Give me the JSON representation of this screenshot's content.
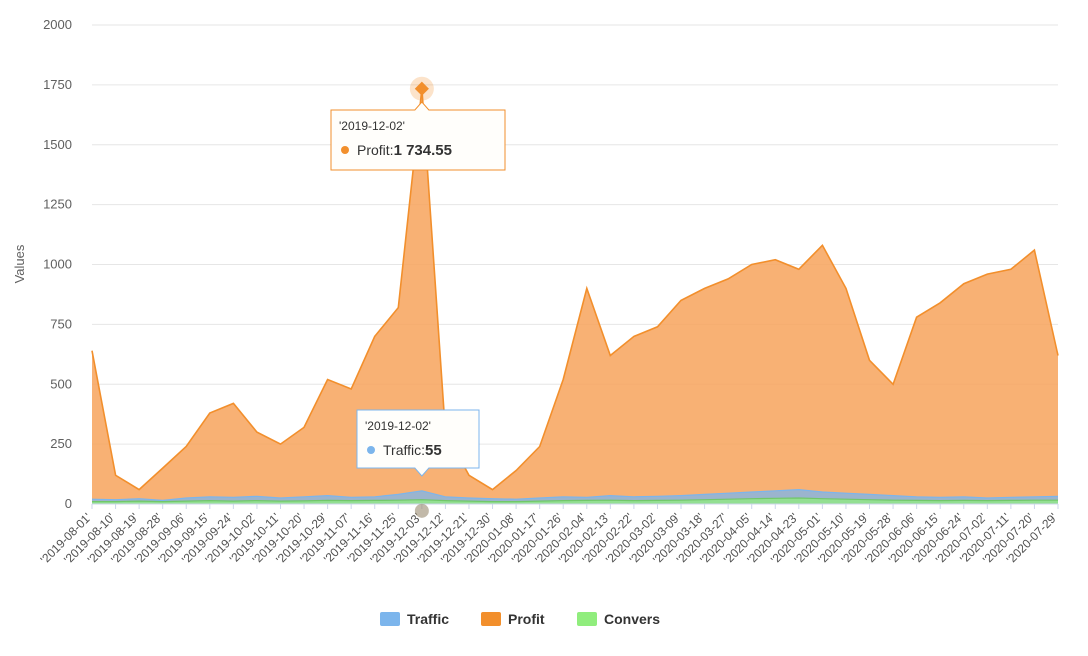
{
  "chart_data": {
    "type": "area",
    "ylabel": "Values",
    "ylim": [
      0,
      2000
    ],
    "yticks": [
      "0",
      "250",
      "500",
      "750",
      "1000",
      "1250",
      "1500",
      "1750",
      "2000"
    ],
    "categories": [
      "'2019-08-01'",
      "'2019-08-10'",
      "'2019-08-19'",
      "'2019-08-28'",
      "'2019-09-06'",
      "'2019-09-15'",
      "'2019-09-24'",
      "'2019-10-02'",
      "'2019-10-11'",
      "'2019-10-20'",
      "'2019-10-29'",
      "'2019-11-07'",
      "'2019-11-16'",
      "'2019-11-25'",
      "'2019-12-03'",
      "'2019-12-12'",
      "'2019-12-21'",
      "'2019-12-30'",
      "'2020-01-08'",
      "'2020-01-17'",
      "'2020-01-26'",
      "'2020-02-04'",
      "'2020-02-13'",
      "'2020-02-22'",
      "'2020-03-02'",
      "'2020-03-09'",
      "'2020-03-18'",
      "'2020-03-27'",
      "'2020-04-05'",
      "'2020-04-14'",
      "'2020-04-23'",
      "'2020-05-01'",
      "'2020-05-10'",
      "'2020-05-19'",
      "'2020-05-28'",
      "'2020-06-06'",
      "'2020-06-15'",
      "'2020-06-24'",
      "'2020-07-02'",
      "'2020-07-11'",
      "'2020-07-20'",
      "'2020-07-29'"
    ],
    "series": [
      {
        "name": "Traffic",
        "color": "#7cb5ec",
        "values": [
          20,
          18,
          22,
          15,
          25,
          30,
          28,
          32,
          25,
          30,
          35,
          28,
          30,
          40,
          55,
          30,
          25,
          22,
          20,
          25,
          30,
          28,
          35,
          30,
          32,
          35,
          40,
          45,
          50,
          55,
          60,
          50,
          45,
          40,
          35,
          30,
          28,
          30,
          25,
          28,
          30,
          32
        ]
      },
      {
        "name": "Profit",
        "color": "#f7a35c",
        "line_color": "#f28f2c",
        "values": [
          640,
          120,
          60,
          150,
          240,
          380,
          420,
          300,
          250,
          320,
          520,
          480,
          700,
          820,
          1734,
          300,
          120,
          60,
          140,
          240,
          520,
          900,
          620,
          700,
          740,
          850,
          900,
          940,
          1000,
          1020,
          980,
          1080,
          900,
          600,
          500,
          780,
          840,
          920,
          960,
          980,
          1060,
          620
        ]
      },
      {
        "name": "Convers",
        "color": "#90ed7d",
        "line_color": "#71c76a",
        "values": [
          10,
          10,
          12,
          10,
          12,
          14,
          12,
          14,
          12,
          13,
          15,
          14,
          15,
          16,
          18,
          14,
          12,
          10,
          10,
          12,
          14,
          15,
          16,
          14,
          15,
          16,
          18,
          20,
          22,
          24,
          25,
          22,
          20,
          18,
          16,
          15,
          14,
          15,
          14,
          15,
          16,
          16
        ]
      }
    ],
    "tooltips": [
      {
        "title": "'2019-12-02'",
        "series": "Profit",
        "label": "Profit: ",
        "value": "1 734.55"
      },
      {
        "title": "'2019-12-02'",
        "series": "Traffic",
        "label": "Traffic: ",
        "value": "55"
      }
    ],
    "legend": {
      "placement": "bottom-center",
      "items": [
        {
          "name": "Traffic",
          "color": "#7cb5ec"
        },
        {
          "name": "Profit",
          "color": "#f28f2c"
        },
        {
          "name": "Convers",
          "color": "#90ed7d"
        }
      ]
    },
    "grid": true
  }
}
